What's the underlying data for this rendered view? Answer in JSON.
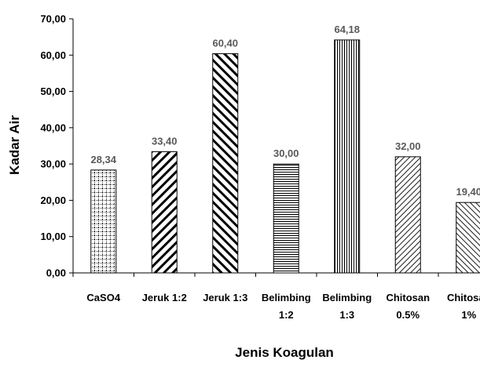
{
  "chart_data": {
    "type": "bar",
    "title": "",
    "xlabel": "Jenis Koagulan",
    "ylabel": "Kadar Air",
    "ylim": [
      0,
      70
    ],
    "yticks": [
      "0,00",
      "10,00",
      "20,00",
      "30,00",
      "40,00",
      "50,00",
      "60,00",
      "70,00"
    ],
    "grid": false,
    "legend": "none",
    "categories": [
      [
        "CaSO4"
      ],
      [
        "Jeruk 1:2"
      ],
      [
        "Jeruk 1:3"
      ],
      [
        "Belimbing",
        "1:2"
      ],
      [
        "Belimbing",
        "1:3"
      ],
      [
        "Chitosan",
        "0.5%"
      ],
      [
        "Chitosan",
        "1%"
      ]
    ],
    "values": [
      28.34,
      33.4,
      60.4,
      30.0,
      64.18,
      32.0,
      19.4
    ],
    "value_labels": [
      "28,34",
      "33,40",
      "60,40",
      "30,00",
      "64,18",
      "32,00",
      "19,40"
    ],
    "fill_patterns": [
      "dotted-grid",
      "wide-diagonal-up",
      "wide-diagonal-down",
      "horizontal-lines",
      "vertical-lines",
      "light-diagonal-up",
      "light-diagonal-down"
    ],
    "colors": {
      "bar_stroke": "#000000",
      "pattern": "#000000",
      "data_label": "#595959",
      "axis": "#000000"
    }
  }
}
